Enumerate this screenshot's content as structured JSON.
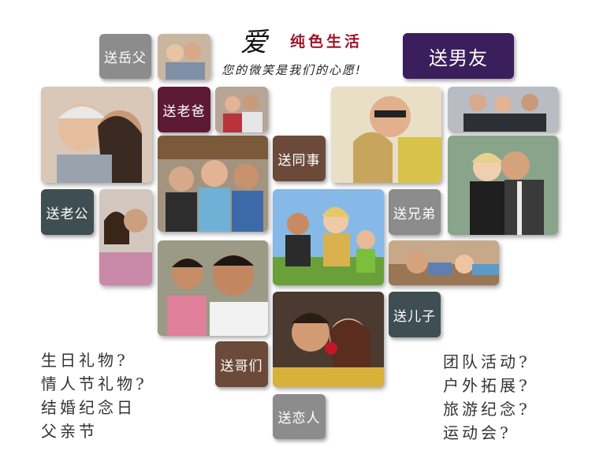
{
  "header": {
    "love_char": "爱",
    "slogan": "纯色生活",
    "subtitle": "您的微笑是我们的心愿!"
  },
  "tiles": {
    "yuefu": "送岳父",
    "boyfriend": "送男友",
    "dad": "送老爸",
    "colleague": "送同事",
    "husband": "送老公",
    "brothers": "送兄弟",
    "son": "送儿子",
    "buddies": "送哥们",
    "lover": "送恋人"
  },
  "colors": {
    "tile_gray": "#8c8c8c",
    "tile_maroon": "#5c1a33",
    "tile_purple": "#3b1f5c",
    "tile_brown": "#6b4a3a",
    "tile_slate": "#3f4e52"
  },
  "left_text": [
    "生日礼物?",
    "情人节礼物?",
    "结婚纪念日",
    "父亲节"
  ],
  "right_text": [
    "团队活动?",
    "户外拓展?",
    "旅游纪念?",
    "运动会?"
  ]
}
